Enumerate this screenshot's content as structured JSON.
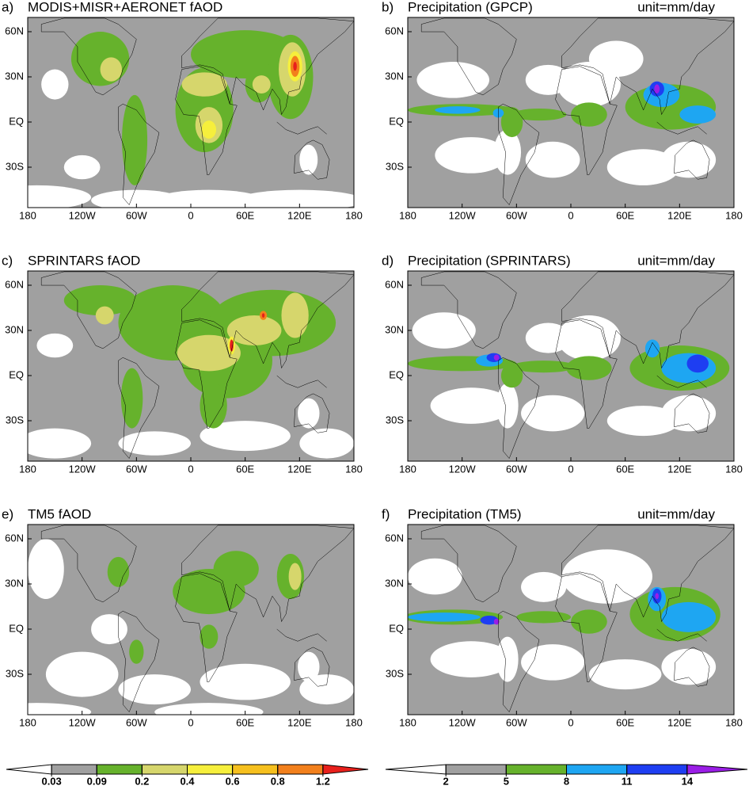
{
  "panels": [
    {
      "label": "a)",
      "title": "MODIS+MISR+AERONET fAOD"
    },
    {
      "label": "b)",
      "title": "Precipitation (GPCP)",
      "unit": "unit=mm/day"
    },
    {
      "label": "c)",
      "title": "SPRINTARS fAOD"
    },
    {
      "label": "d)",
      "title": "Precipitation (SPRINTARS)",
      "unit": "unit=mm/day"
    },
    {
      "label": "e)",
      "title": "TM5 fAOD"
    },
    {
      "label": "f)",
      "title": "Precipitation (TM5)",
      "unit": "unit=mm/day"
    }
  ],
  "lat_labels": [
    "60N",
    "30N",
    "EQ",
    "30S"
  ],
  "lon_labels": [
    "180",
    "120W",
    "60W",
    "0",
    "60E",
    "120E",
    "180"
  ],
  "colorbars": [
    {
      "ticks": [
        0.03,
        0.09,
        0.2,
        0.4,
        0.6,
        0.8,
        1.2
      ],
      "colors": [
        "#ffffff",
        "#a0a0a0",
        "#66b22c",
        "#d6d66c",
        "#f6ef3c",
        "#f6c01e",
        "#f2801c",
        "#e8201c"
      ]
    },
    {
      "ticks": [
        2,
        5,
        8,
        11,
        14
      ],
      "colors": [
        "#ffffff",
        "#a0a0a0",
        "#66b22c",
        "#1ea6f2",
        "#1e3ef2",
        "#9a1ee6"
      ]
    }
  ]
}
